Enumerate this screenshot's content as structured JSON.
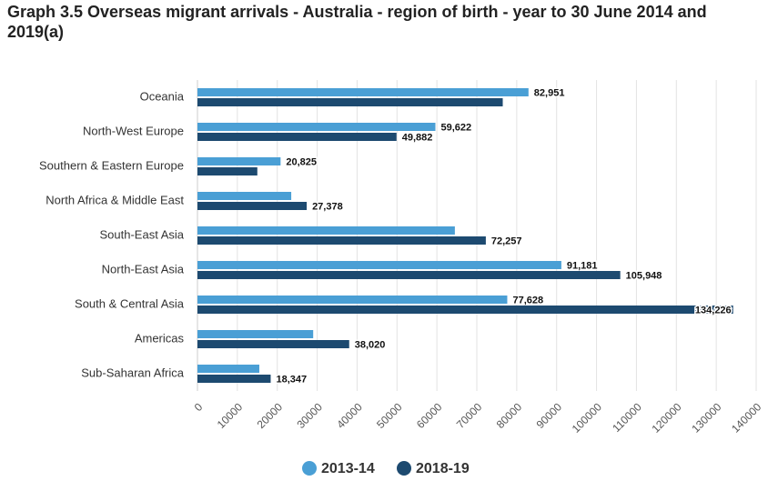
{
  "chart_data": {
    "type": "bar",
    "orientation": "horizontal",
    "title": "Graph 3.5 Overseas migrant arrivals - Australia - region of birth - year to 30 June 2014 and 2019(a)",
    "categories": [
      "Oceania",
      "North-West Europe",
      "Southern & Eastern Europe",
      "North Africa & Middle East",
      "South-East Asia",
      "North-East Asia",
      "South & Central Asia",
      "Americas",
      "Sub-Saharan Africa"
    ],
    "series": [
      {
        "name": "2013-14",
        "color": "#4a9fd5",
        "values": [
          82951,
          59622,
          20825,
          23500,
          64500,
          91181,
          77628,
          29000,
          15500
        ],
        "value_labels": [
          "82,951",
          "59,622",
          "20,825",
          null,
          null,
          "91,181",
          "77,628",
          null,
          null
        ]
      },
      {
        "name": "2018-19",
        "color": "#1d4a70",
        "values": [
          76500,
          49882,
          15000,
          27378,
          72257,
          105948,
          134226,
          38020,
          18347
        ],
        "value_labels": [
          null,
          "49,882",
          null,
          "27,378",
          "72,257",
          "105,948",
          "134,226",
          "38,020",
          "18,347"
        ]
      }
    ],
    "xlim": [
      0,
      140000
    ],
    "xticks": [
      0,
      10000,
      20000,
      30000,
      40000,
      50000,
      60000,
      70000,
      80000,
      90000,
      100000,
      110000,
      120000,
      130000,
      140000
    ],
    "grid": true
  }
}
